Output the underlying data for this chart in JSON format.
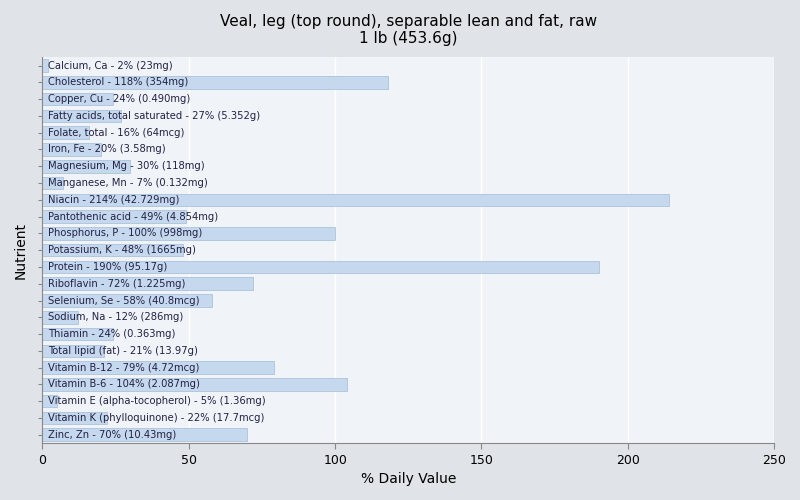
{
  "title": "Veal, leg (top round), separable lean and fat, raw\n1 lb (453.6g)",
  "xlabel": "% Daily Value",
  "ylabel": "Nutrient",
  "xlim": [
    0,
    250
  ],
  "xticks": [
    0,
    50,
    100,
    150,
    200,
    250
  ],
  "plot_bg_color": "#f0f4f8",
  "fig_bg_color": "#e0e4e8",
  "bar_color": "#c5d8ee",
  "bar_edge_color": "#a0bcd8",
  "text_color": "#222244",
  "nutrients": [
    {
      "label": "Calcium, Ca - 2% (23mg)",
      "value": 2
    },
    {
      "label": "Cholesterol - 118% (354mg)",
      "value": 118
    },
    {
      "label": "Copper, Cu - 24% (0.490mg)",
      "value": 24
    },
    {
      "label": "Fatty acids, total saturated - 27% (5.352g)",
      "value": 27
    },
    {
      "label": "Folate, total - 16% (64mcg)",
      "value": 16
    },
    {
      "label": "Iron, Fe - 20% (3.58mg)",
      "value": 20
    },
    {
      "label": "Magnesium, Mg - 30% (118mg)",
      "value": 30
    },
    {
      "label": "Manganese, Mn - 7% (0.132mg)",
      "value": 7
    },
    {
      "label": "Niacin - 214% (42.729mg)",
      "value": 214
    },
    {
      "label": "Pantothenic acid - 49% (4.854mg)",
      "value": 49
    },
    {
      "label": "Phosphorus, P - 100% (998mg)",
      "value": 100
    },
    {
      "label": "Potassium, K - 48% (1665mg)",
      "value": 48
    },
    {
      "label": "Protein - 190% (95.17g)",
      "value": 190
    },
    {
      "label": "Riboflavin - 72% (1.225mg)",
      "value": 72
    },
    {
      "label": "Selenium, Se - 58% (40.8mcg)",
      "value": 58
    },
    {
      "label": "Sodium, Na - 12% (286mg)",
      "value": 12
    },
    {
      "label": "Thiamin - 24% (0.363mg)",
      "value": 24
    },
    {
      "label": "Total lipid (fat) - 21% (13.97g)",
      "value": 21
    },
    {
      "label": "Vitamin B-12 - 79% (4.72mcg)",
      "value": 79
    },
    {
      "label": "Vitamin B-6 - 104% (2.087mg)",
      "value": 104
    },
    {
      "label": "Vitamin E (alpha-tocopherol) - 5% (1.36mg)",
      "value": 5
    },
    {
      "label": "Vitamin K (phylloquinone) - 22% (17.7mcg)",
      "value": 22
    },
    {
      "label": "Zinc, Zn - 70% (10.43mg)",
      "value": 70
    }
  ]
}
